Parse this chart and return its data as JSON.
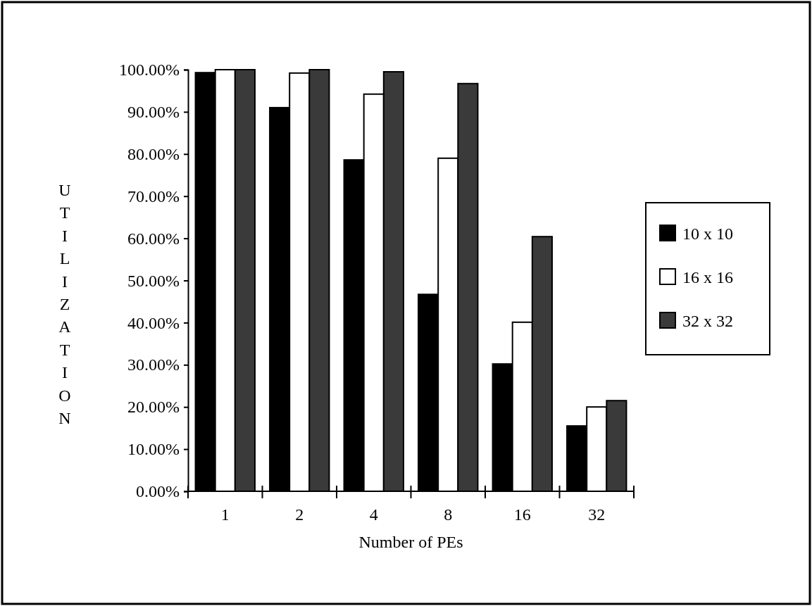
{
  "chart_data": {
    "type": "bar",
    "xlabel": "Number of PEs",
    "ylabel": "UTILIZATION",
    "categories": [
      "1",
      "2",
      "4",
      "8",
      "16",
      "32"
    ],
    "series": [
      {
        "name": "10 x 10",
        "color": "#000000",
        "values": [
          99.3,
          91,
          78.6,
          46.7,
          30.2,
          15.5
        ]
      },
      {
        "name": "16 x 16",
        "color": "#ffffff",
        "values": [
          100,
          99.2,
          94.2,
          79,
          40.1,
          20
        ]
      },
      {
        "name": "32 x 32",
        "color": "#3a3a3a",
        "values": [
          100,
          100,
          99.5,
          96.7,
          60.4,
          21.5
        ]
      }
    ],
    "ylim": [
      0,
      100
    ],
    "yticks": [
      {
        "value": 0,
        "label": "0.00%"
      },
      {
        "value": 10,
        "label": "10.00%"
      },
      {
        "value": 20,
        "label": "20.00%"
      },
      {
        "value": 30,
        "label": "30.00%"
      },
      {
        "value": 40,
        "label": "40.00%"
      },
      {
        "value": 50,
        "label": "50.00%"
      },
      {
        "value": 60,
        "label": "60.00%"
      },
      {
        "value": 70,
        "label": "70.00%"
      },
      {
        "value": 80,
        "label": "80.00%"
      },
      {
        "value": 90,
        "label": "90.00%"
      },
      {
        "value": 100,
        "label": "100.00%"
      }
    ],
    "grid": false,
    "legend": "right"
  }
}
